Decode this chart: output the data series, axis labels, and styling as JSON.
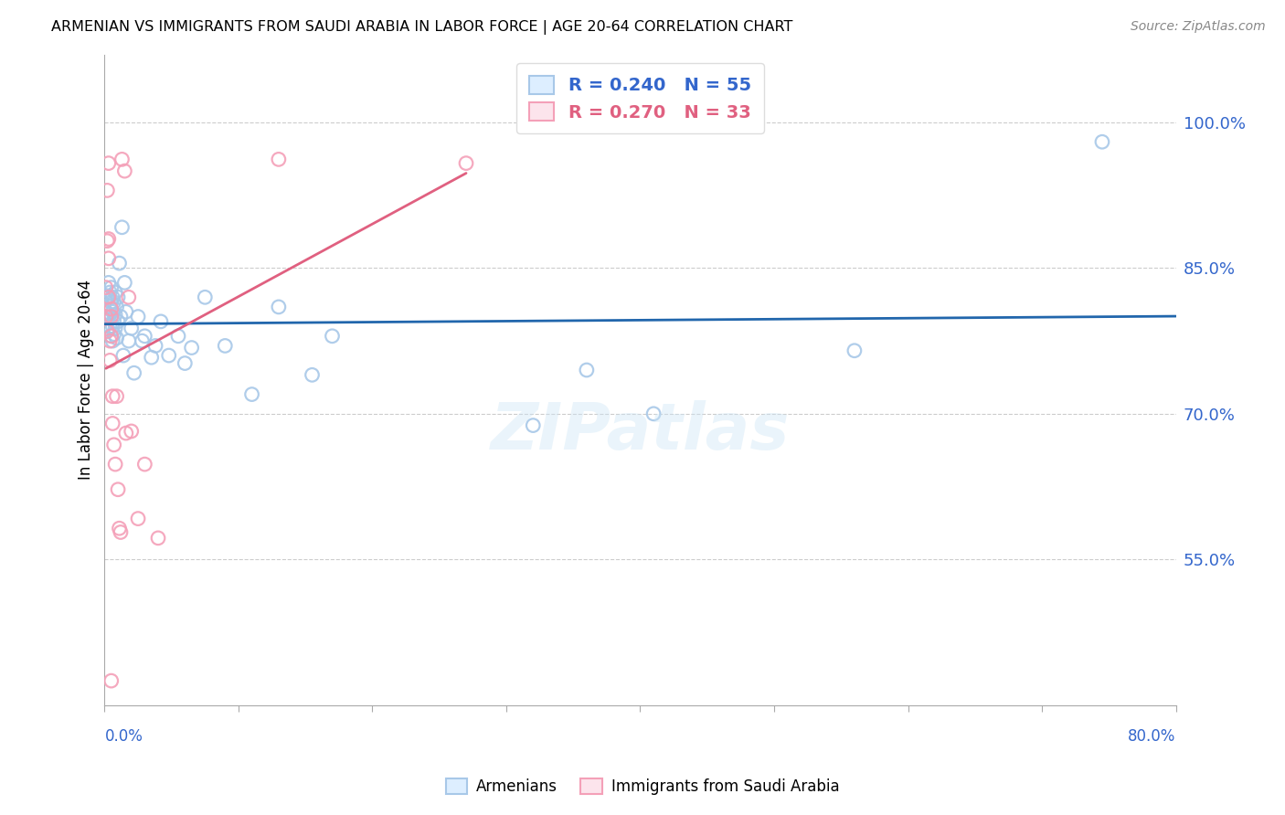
{
  "title": "ARMENIAN VS IMMIGRANTS FROM SAUDI ARABIA IN LABOR FORCE | AGE 20-64 CORRELATION CHART",
  "source": "Source: ZipAtlas.com",
  "ylabel": "In Labor Force | Age 20-64",
  "r_armenians": 0.24,
  "n_armenians": 55,
  "r_saudi": 0.27,
  "n_saudi": 33,
  "legend_armenians": "Armenians",
  "legend_saudi": "Immigrants from Saudi Arabia",
  "blue_dot_color": "#a8c8e8",
  "pink_dot_color": "#f4a0b8",
  "trend_blue": "#2166ac",
  "trend_pink": "#e06080",
  "axis_label_color": "#3366cc",
  "grid_color": "#cccccc",
  "ytick_values": [
    0.55,
    0.7,
    0.85,
    1.0
  ],
  "ytick_labels": [
    "55.0%",
    "70.0%",
    "85.0%",
    "100.0%"
  ],
  "xlim": [
    0.0,
    0.8
  ],
  "ylim": [
    0.4,
    1.07
  ],
  "armenians_x": [
    0.001,
    0.002,
    0.003,
    0.003,
    0.004,
    0.004,
    0.004,
    0.005,
    0.005,
    0.005,
    0.005,
    0.006,
    0.006,
    0.006,
    0.006,
    0.007,
    0.007,
    0.007,
    0.008,
    0.008,
    0.008,
    0.009,
    0.009,
    0.01,
    0.01,
    0.011,
    0.012,
    0.013,
    0.014,
    0.015,
    0.016,
    0.018,
    0.02,
    0.022,
    0.025,
    0.028,
    0.03,
    0.035,
    0.038,
    0.042,
    0.048,
    0.055,
    0.06,
    0.065,
    0.075,
    0.09,
    0.11,
    0.13,
    0.155,
    0.17,
    0.32,
    0.36,
    0.41,
    0.56,
    0.745
  ],
  "armenians_y": [
    0.805,
    0.82,
    0.8,
    0.835,
    0.79,
    0.81,
    0.825,
    0.78,
    0.8,
    0.815,
    0.83,
    0.775,
    0.79,
    0.805,
    0.82,
    0.782,
    0.795,
    0.815,
    0.788,
    0.802,
    0.825,
    0.778,
    0.81,
    0.795,
    0.82,
    0.855,
    0.8,
    0.892,
    0.76,
    0.835,
    0.805,
    0.775,
    0.788,
    0.742,
    0.8,
    0.775,
    0.78,
    0.758,
    0.77,
    0.795,
    0.76,
    0.78,
    0.752,
    0.768,
    0.82,
    0.77,
    0.72,
    0.81,
    0.74,
    0.78,
    0.688,
    0.745,
    0.7,
    0.765,
    0.98
  ],
  "saudi_x": [
    0.001,
    0.001,
    0.002,
    0.002,
    0.003,
    0.003,
    0.003,
    0.004,
    0.004,
    0.005,
    0.005,
    0.005,
    0.006,
    0.006,
    0.007,
    0.008,
    0.009,
    0.01,
    0.011,
    0.012,
    0.013,
    0.015,
    0.016,
    0.018,
    0.02,
    0.025,
    0.03,
    0.04,
    0.13,
    0.27,
    0.002,
    0.003,
    0.005
  ],
  "saudi_y": [
    0.8,
    0.83,
    0.785,
    0.93,
    0.86,
    0.88,
    0.82,
    0.755,
    0.775,
    0.808,
    0.78,
    0.8,
    0.69,
    0.718,
    0.668,
    0.648,
    0.718,
    0.622,
    0.582,
    0.578,
    0.962,
    0.95,
    0.68,
    0.82,
    0.682,
    0.592,
    0.648,
    0.572,
    0.962,
    0.958,
    0.878,
    0.958,
    0.425
  ]
}
